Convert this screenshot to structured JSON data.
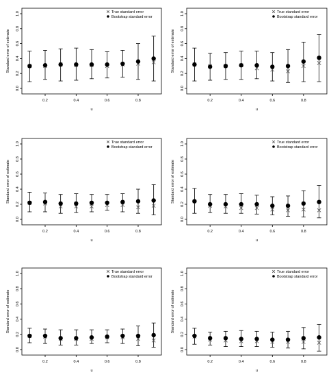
{
  "chart_data": [
    {
      "type": "scatter",
      "xlabel": "u",
      "ylabel": "Standard error of estimate",
      "xlim": [
        0.05,
        0.95
      ],
      "ylim": [
        0,
        1.0
      ],
      "x_ticks": [
        0.2,
        0.4,
        0.6,
        0.8
      ],
      "y_ticks": [
        0.0,
        0.2,
        0.4,
        0.6,
        0.8,
        1.0
      ],
      "legend_position": "top-right",
      "series": [
        {
          "name": "True standard error",
          "marker": "x",
          "values": [
            0.3,
            0.3,
            0.32,
            0.31,
            0.31,
            0.3,
            0.32,
            0.33,
            0.35
          ]
        },
        {
          "name": "Bootstrap standard error",
          "marker": "dot",
          "values": [
            0.3,
            0.31,
            0.32,
            0.32,
            0.32,
            0.32,
            0.33,
            0.36,
            0.4
          ],
          "lower": [
            0.09,
            0.12,
            0.1,
            0.11,
            0.13,
            0.14,
            0.15,
            0.12,
            0.1
          ],
          "upper": [
            0.5,
            0.51,
            0.53,
            0.54,
            0.52,
            0.49,
            0.51,
            0.6,
            0.7
          ]
        }
      ],
      "x": [
        0.1,
        0.2,
        0.3,
        0.4,
        0.5,
        0.6,
        0.7,
        0.8,
        0.9
      ]
    },
    {
      "type": "scatter",
      "xlabel": "u",
      "ylabel": "Standard error of estimate",
      "xlim": [
        0.05,
        0.95
      ],
      "ylim": [
        0,
        1.0
      ],
      "x_ticks": [
        0.2,
        0.4,
        0.6,
        0.8
      ],
      "y_ticks": [
        0.0,
        0.2,
        0.4,
        0.6,
        0.8,
        1.0
      ],
      "legend_position": "top-right",
      "series": [
        {
          "name": "True standard error",
          "marker": "x",
          "values": [
            0.32,
            0.3,
            0.3,
            0.31,
            0.27,
            0.25,
            0.23,
            0.3,
            0.34
          ]
        },
        {
          "name": "Bootstrap standard error",
          "marker": "dot",
          "values": [
            0.32,
            0.29,
            0.3,
            0.31,
            0.31,
            0.29,
            0.3,
            0.36,
            0.41
          ],
          "lower": [
            0.1,
            0.11,
            0.12,
            0.12,
            0.13,
            0.1,
            0.08,
            0.09,
            0.09
          ],
          "upper": [
            0.54,
            0.47,
            0.48,
            0.5,
            0.5,
            0.48,
            0.52,
            0.62,
            0.72
          ]
        }
      ],
      "x": [
        0.1,
        0.2,
        0.3,
        0.4,
        0.5,
        0.6,
        0.7,
        0.8,
        0.9
      ]
    },
    {
      "type": "scatter",
      "xlabel": "u",
      "ylabel": "Standard error of estimate",
      "xlim": [
        0.05,
        0.95
      ],
      "ylim": [
        0,
        1.0
      ],
      "x_ticks": [
        0.2,
        0.4,
        0.6,
        0.8
      ],
      "y_ticks": [
        0.0,
        0.2,
        0.4,
        0.6,
        0.8,
        1.0
      ],
      "legend_position": "top-right",
      "series": [
        {
          "name": "True standard error",
          "marker": "x",
          "values": [
            0.22,
            0.21,
            0.17,
            0.17,
            0.17,
            0.19,
            0.19,
            0.16,
            0.18
          ]
        },
        {
          "name": "Bootstrap standard error",
          "marker": "dot",
          "values": [
            0.22,
            0.23,
            0.21,
            0.21,
            0.22,
            0.22,
            0.23,
            0.24,
            0.25
          ],
          "lower": [
            0.1,
            0.1,
            0.08,
            0.09,
            0.1,
            0.12,
            0.1,
            0.08,
            0.06
          ],
          "upper": [
            0.36,
            0.35,
            0.33,
            0.34,
            0.33,
            0.33,
            0.34,
            0.4,
            0.46
          ]
        }
      ],
      "x": [
        0.1,
        0.2,
        0.3,
        0.4,
        0.5,
        0.6,
        0.7,
        0.8,
        0.9
      ]
    },
    {
      "type": "scatter",
      "xlabel": "u",
      "ylabel": "Standard error of estimate",
      "xlim": [
        0.05,
        0.95
      ],
      "ylim": [
        0,
        1.0
      ],
      "x_ticks": [
        0.2,
        0.4,
        0.6,
        0.8
      ],
      "y_ticks": [
        0.0,
        0.2,
        0.4,
        0.6,
        0.8,
        1.0
      ],
      "legend_position": "top-right",
      "series": [
        {
          "name": "True standard error",
          "marker": "x",
          "values": [
            0.24,
            0.18,
            0.17,
            0.15,
            0.15,
            0.13,
            0.12,
            0.13,
            0.12
          ]
        },
        {
          "name": "Bootstrap standard error",
          "marker": "dot",
          "values": [
            0.24,
            0.2,
            0.2,
            0.2,
            0.2,
            0.18,
            0.18,
            0.21,
            0.23
          ],
          "lower": [
            0.08,
            0.09,
            0.08,
            0.08,
            0.07,
            0.06,
            0.04,
            0.03,
            0.02
          ],
          "upper": [
            0.41,
            0.33,
            0.33,
            0.34,
            0.32,
            0.3,
            0.31,
            0.38,
            0.45
          ]
        }
      ],
      "x": [
        0.1,
        0.2,
        0.3,
        0.4,
        0.5,
        0.6,
        0.7,
        0.8,
        0.9
      ]
    },
    {
      "type": "scatter",
      "xlabel": "u",
      "ylabel": "Standard error of estimate",
      "xlim": [
        0.05,
        0.95
      ],
      "ylim": [
        0,
        1.0
      ],
      "x_ticks": [
        0.2,
        0.4,
        0.6,
        0.8
      ],
      "y_ticks": [
        0.0,
        0.2,
        0.4,
        0.6,
        0.8,
        1.0
      ],
      "legend_position": "top-right",
      "series": [
        {
          "name": "True standard error",
          "marker": "x",
          "values": [
            0.18,
            0.17,
            0.14,
            0.14,
            0.14,
            0.16,
            0.16,
            0.14,
            0.12
          ]
        },
        {
          "name": "Bootstrap standard error",
          "marker": "dot",
          "values": [
            0.18,
            0.18,
            0.15,
            0.15,
            0.16,
            0.17,
            0.18,
            0.18,
            0.19
          ],
          "lower": [
            0.09,
            0.08,
            0.06,
            0.06,
            0.08,
            0.09,
            0.08,
            0.05,
            0.03
          ],
          "upper": [
            0.28,
            0.27,
            0.26,
            0.26,
            0.26,
            0.26,
            0.27,
            0.31,
            0.35
          ]
        }
      ],
      "x": [
        0.1,
        0.2,
        0.3,
        0.4,
        0.5,
        0.6,
        0.7,
        0.8,
        0.9
      ]
    },
    {
      "type": "scatter",
      "xlabel": "u",
      "ylabel": "Standard error of estimate",
      "xlim": [
        0.05,
        0.95
      ],
      "ylim": [
        0,
        1.0
      ],
      "x_ticks": [
        0.2,
        0.4,
        0.6,
        0.8
      ],
      "y_ticks": [
        0.0,
        0.2,
        0.4,
        0.6,
        0.8,
        1.0
      ],
      "legend_position": "top-right",
      "series": [
        {
          "name": "True standard error",
          "marker": "x",
          "values": [
            0.17,
            0.13,
            0.12,
            0.11,
            0.11,
            0.1,
            0.1,
            0.1,
            0.09
          ]
        },
        {
          "name": "Bootstrap standard error",
          "marker": "dot",
          "values": [
            0.18,
            0.15,
            0.15,
            0.14,
            0.14,
            0.13,
            0.13,
            0.15,
            0.16
          ],
          "lower": [
            0.07,
            0.06,
            0.04,
            0.04,
            0.04,
            0.03,
            0.02,
            0.01,
            -0.02
          ],
          "upper": [
            0.28,
            0.23,
            0.24,
            0.25,
            0.24,
            0.23,
            0.24,
            0.29,
            0.33
          ]
        }
      ],
      "x": [
        0.1,
        0.2,
        0.3,
        0.4,
        0.5,
        0.6,
        0.7,
        0.8,
        0.9
      ]
    }
  ]
}
